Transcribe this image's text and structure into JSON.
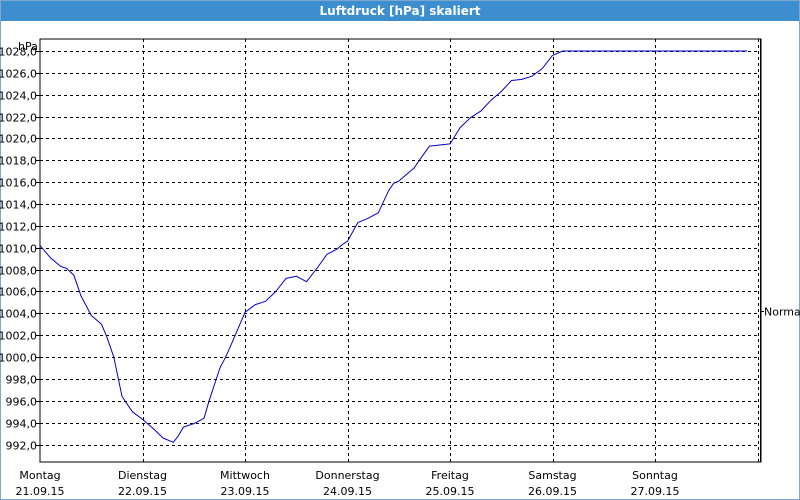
{
  "window": {
    "title": "Luftdruck [hPa] skaliert"
  },
  "chart_data": {
    "type": "line",
    "title": "Luftdruck [hPa] skaliert",
    "ylabel": "hPa",
    "ylim": [
      990.4,
      1029.1
    ],
    "yticks": [
      "992,0",
      "994,0",
      "996,0",
      "998,0",
      "1000,0",
      "1002,0",
      "1004,0",
      "1006,0",
      "1008,0",
      "1010,0",
      "1012,0",
      "1014,0",
      "1016,0",
      "1018,0",
      "1020,0",
      "1022,0",
      "1024,0",
      "1026,0",
      "1028,0"
    ],
    "xlim": [
      0,
      7.15
    ],
    "xticks": [
      {
        "day": "Montag",
        "date": "21.09.15"
      },
      {
        "day": "Dienstag",
        "date": "22.09.15"
      },
      {
        "day": "Mittwoch",
        "date": "23.09.15"
      },
      {
        "day": "Donnerstag",
        "date": "24.09.15"
      },
      {
        "day": "Freitag",
        "date": "25.09.15"
      },
      {
        "day": "Samstag",
        "date": "26.09.15"
      },
      {
        "day": "Sonntag",
        "date": "27.09.15"
      }
    ],
    "grid": true,
    "reference_line": {
      "label": "Normal",
      "value": 1004.2
    },
    "series": [
      {
        "color": "#0000cc",
        "x": [
          0.0,
          0.1,
          0.2,
          0.26,
          0.33,
          0.4,
          0.5,
          0.6,
          0.65,
          0.72,
          0.8,
          0.9,
          1.0,
          1.1,
          1.2,
          1.3,
          1.35,
          1.4,
          1.5,
          1.6,
          1.65,
          1.72,
          1.76,
          1.8,
          1.85,
          2.0,
          2.1,
          2.2,
          2.3,
          2.4,
          2.5,
          2.6,
          2.7,
          2.8,
          2.9,
          2.95,
          3.0,
          3.1,
          3.2,
          3.3,
          3.4,
          3.45,
          3.5,
          3.6,
          3.65,
          3.7,
          3.8,
          3.9,
          4.0,
          4.1,
          4.2,
          4.3,
          4.4,
          4.5,
          4.6,
          4.7,
          4.8,
          4.9,
          5.0,
          5.1,
          5.2,
          5.3,
          5.4,
          5.5,
          5.6,
          5.7,
          5.8,
          5.9,
          6.0,
          6.1,
          6.2,
          6.3,
          6.4,
          6.5,
          6.6,
          6.7,
          6.8,
          6.9,
          7.0,
          7.1
        ],
        "y": [
          1010.2,
          1009.1,
          1008.3,
          1008.1,
          1007.5,
          1005.6,
          1003.8,
          1003.0,
          1001.9,
          1000.0,
          996.4,
          995.0,
          994.3,
          993.5,
          992.6,
          992.2,
          992.8,
          993.6,
          993.9,
          994.4,
          996.0,
          998.0,
          999.1,
          999.8,
          1000.8,
          1004.1,
          1004.8,
          1005.1,
          1006.0,
          1007.2,
          1007.4,
          1006.9,
          1008.1,
          1009.4,
          1009.9,
          1010.3,
          1010.6,
          1012.3,
          1012.7,
          1013.2,
          1015.2,
          1015.9,
          1016.1,
          1016.9,
          1017.3,
          1018.0,
          1019.3,
          1019.4,
          1019.5,
          1021.0,
          1021.9,
          1022.5,
          1023.5,
          1024.3,
          1025.3,
          1025.4,
          1025.7,
          1026.4,
          1027.6,
          1028.0,
          1028.0,
          1028.0,
          1028.0,
          1028.0,
          1028.0,
          1028.0,
          1028.0,
          1028.0,
          1028.0,
          1028.0,
          1028.0,
          1028.0,
          1028.0,
          1028.0,
          1028.0,
          1028.0,
          1028.0,
          1028.0,
          1028.0,
          1028.0
        ]
      }
    ]
  }
}
